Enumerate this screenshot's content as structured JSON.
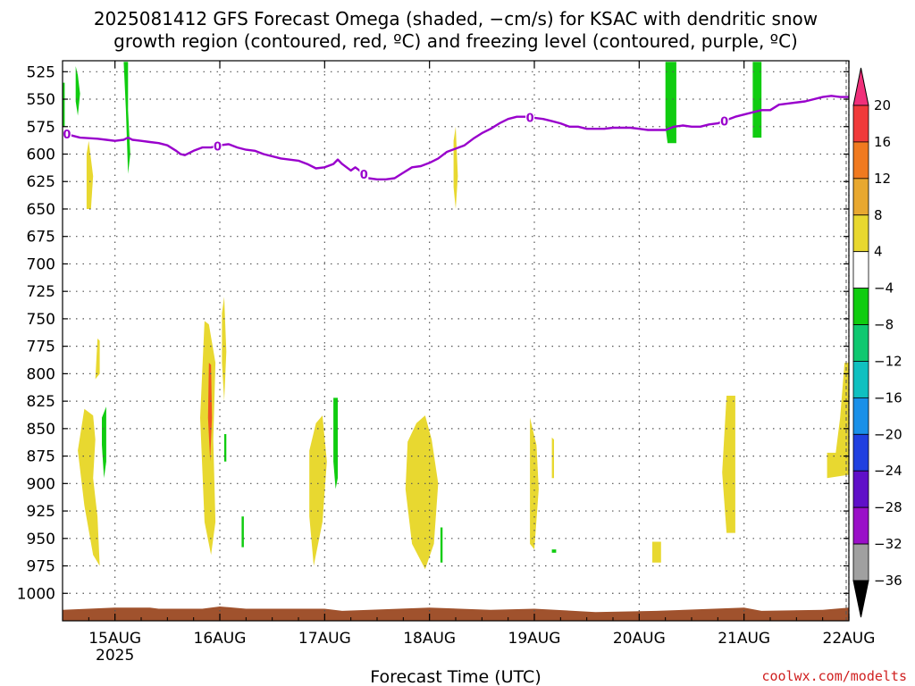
{
  "chart_data": {
    "type": "heatmap",
    "title_lines": [
      "2025081412 GFS Forecast Omega (shaded, −cm/s) for KSAC with dendritic snow",
      "growth region (contoured, red, ºC) and freezing level (contoured, purple, ºC)"
    ],
    "xlabel": "Forecast Time (UTC)",
    "credit": "coolwx.com/modelts",
    "x_range_hours": [
      -12,
      168
    ],
    "x_ticks": [
      {
        "hour": 0,
        "label": "15AUG",
        "sublabel": "2025"
      },
      {
        "hour": 24,
        "label": "16AUG",
        "sublabel": ""
      },
      {
        "hour": 48,
        "label": "17AUG",
        "sublabel": ""
      },
      {
        "hour": 72,
        "label": "18AUG",
        "sublabel": ""
      },
      {
        "hour": 96,
        "label": "19AUG",
        "sublabel": ""
      },
      {
        "hour": 120,
        "label": "20AUG",
        "sublabel": ""
      },
      {
        "hour": 144,
        "label": "21AUG",
        "sublabel": ""
      },
      {
        "hour": 168,
        "label": "22AUG",
        "sublabel": ""
      }
    ],
    "y_range_hpa": [
      1025,
      515
    ],
    "y_ticks": [
      "525",
      "550",
      "575",
      "600",
      "625",
      "650",
      "675",
      "700",
      "725",
      "750",
      "775",
      "800",
      "825",
      "850",
      "875",
      "900",
      "925",
      "950",
      "975",
      "1000"
    ],
    "colorbar": {
      "labels": [
        "20",
        "16",
        "12",
        "8",
        "4",
        "−4",
        "−8",
        "−12",
        "−16",
        "−20",
        "−24",
        "−28",
        "−32",
        "−36"
      ],
      "colors": [
        "#f0307a",
        "#f03a3a",
        "#f07a20",
        "#e8a830",
        "#e8d830",
        "#ffffff",
        "#10cc10",
        "#10c870",
        "#10c0c0",
        "#1a90e8",
        "#2040e0",
        "#6010c8",
        "#9a10c8",
        "#a0a0a0"
      ]
    },
    "freezing_level": {
      "color": "#9900cc",
      "label": "0",
      "label_hours": [
        -11,
        23.5,
        57,
        95,
        139.5
      ],
      "points": [
        [
          -12,
          580
        ],
        [
          -10,
          583
        ],
        [
          -8,
          585
        ],
        [
          -4,
          586
        ],
        [
          -2,
          587
        ],
        [
          0,
          588
        ],
        [
          2,
          587
        ],
        [
          3,
          585
        ],
        [
          4,
          587
        ],
        [
          6,
          588
        ],
        [
          8,
          589
        ],
        [
          10,
          590
        ],
        [
          12,
          592
        ],
        [
          14,
          597
        ],
        [
          15,
          600
        ],
        [
          16,
          601
        ],
        [
          18,
          597
        ],
        [
          20,
          594
        ],
        [
          22,
          594
        ],
        [
          24,
          592
        ],
        [
          26,
          591
        ],
        [
          28,
          594
        ],
        [
          30,
          596
        ],
        [
          32,
          597
        ],
        [
          34,
          600
        ],
        [
          38,
          604
        ],
        [
          42,
          606
        ],
        [
          44,
          609
        ],
        [
          46,
          613
        ],
        [
          48,
          612
        ],
        [
          50,
          609
        ],
        [
          51,
          605
        ],
        [
          52,
          609
        ],
        [
          54,
          615
        ],
        [
          55,
          612
        ],
        [
          56,
          615
        ],
        [
          58,
          622
        ],
        [
          60,
          623
        ],
        [
          62,
          623
        ],
        [
          64,
          622
        ],
        [
          66,
          617
        ],
        [
          68,
          612
        ],
        [
          70,
          611
        ],
        [
          72,
          608
        ],
        [
          74,
          604
        ],
        [
          76,
          598
        ],
        [
          78,
          595
        ],
        [
          80,
          592
        ],
        [
          82,
          586
        ],
        [
          84,
          581
        ],
        [
          86,
          577
        ],
        [
          88,
          572
        ],
        [
          90,
          568
        ],
        [
          92,
          566
        ],
        [
          94,
          566
        ],
        [
          96,
          567
        ],
        [
          98,
          568
        ],
        [
          100,
          570
        ],
        [
          102,
          572
        ],
        [
          104,
          575
        ],
        [
          106,
          575
        ],
        [
          108,
          577
        ],
        [
          110,
          577
        ],
        [
          112,
          577
        ],
        [
          114,
          576
        ],
        [
          116,
          576
        ],
        [
          118,
          576
        ],
        [
          120,
          577
        ],
        [
          122,
          578
        ],
        [
          126,
          578
        ],
        [
          128,
          575
        ],
        [
          130,
          574
        ],
        [
          132,
          575
        ],
        [
          134,
          575
        ],
        [
          136,
          573
        ],
        [
          138,
          572
        ],
        [
          140,
          569
        ],
        [
          142,
          566
        ],
        [
          144,
          564
        ],
        [
          148,
          560
        ],
        [
          150,
          560
        ],
        [
          152,
          555
        ],
        [
          154,
          554
        ],
        [
          158,
          552
        ],
        [
          162,
          548
        ],
        [
          164,
          547
        ],
        [
          166,
          548
        ],
        [
          168,
          548
        ]
      ]
    },
    "positive_omega_regions": [
      {
        "color": "#e8d830",
        "points": [
          [
            -7,
            832
          ],
          [
            -5,
            838
          ],
          [
            -4.5,
            860
          ],
          [
            -5,
            895
          ],
          [
            -4,
            930
          ],
          [
            -3.5,
            975
          ],
          [
            -5,
            965
          ],
          [
            -7,
            920
          ],
          [
            -8.5,
            870
          ]
        ]
      },
      {
        "color": "#e8d830",
        "points": [
          [
            -6.5,
            600
          ],
          [
            -6,
            588
          ],
          [
            -5,
            620
          ],
          [
            -5.5,
            650
          ],
          [
            -6.5,
            650
          ]
        ]
      },
      {
        "color": "#e8d830",
        "points": [
          [
            -4,
            768
          ],
          [
            -3.5,
            770
          ],
          [
            -3.5,
            800
          ],
          [
            -4.5,
            805
          ]
        ]
      },
      {
        "color": "#e8d830",
        "points": [
          [
            20.5,
            752
          ],
          [
            21.5,
            755
          ],
          [
            23,
            790
          ],
          [
            22.5,
            860
          ],
          [
            23,
            935
          ],
          [
            22,
            965
          ],
          [
            20.5,
            935
          ],
          [
            19.5,
            840
          ]
        ]
      },
      {
        "color": "#e8d830",
        "points": [
          [
            24.5,
            745
          ],
          [
            25,
            730
          ],
          [
            25.5,
            780
          ],
          [
            25,
            825
          ],
          [
            24.5,
            790
          ]
        ]
      },
      {
        "color": "#e8d830",
        "points": [
          [
            46,
            845
          ],
          [
            47.5,
            838
          ],
          [
            48.5,
            880
          ],
          [
            47.5,
            935
          ],
          [
            45.5,
            975
          ],
          [
            44.5,
            930
          ],
          [
            44.5,
            870
          ]
        ]
      },
      {
        "color": "#e8d830",
        "points": [
          [
            69,
            845
          ],
          [
            71,
            838
          ],
          [
            72.5,
            860
          ],
          [
            74,
            900
          ],
          [
            73,
            955
          ],
          [
            71,
            978
          ],
          [
            68,
            955
          ],
          [
            66.5,
            905
          ],
          [
            67,
            862
          ]
        ]
      },
      {
        "color": "#e8d830",
        "points": [
          [
            77.5,
            588
          ],
          [
            78,
            575
          ],
          [
            78.5,
            620
          ],
          [
            78,
            650
          ],
          [
            77.5,
            630
          ]
        ]
      },
      {
        "color": "#e8d830",
        "points": [
          [
            95,
            840
          ],
          [
            96.5,
            865
          ],
          [
            97,
            905
          ],
          [
            96,
            960
          ],
          [
            95,
            955
          ],
          [
            95,
            880
          ]
        ]
      },
      {
        "color": "#e8d830",
        "points": [
          [
            100,
            858
          ],
          [
            100.5,
            860
          ],
          [
            100.5,
            895
          ],
          [
            100,
            895
          ]
        ]
      },
      {
        "color": "#e8d830",
        "points": [
          [
            123,
            953
          ],
          [
            125,
            953
          ],
          [
            125,
            972
          ],
          [
            123,
            972
          ]
        ]
      },
      {
        "color": "#e8d830",
        "points": [
          [
            140,
            820
          ],
          [
            142,
            820
          ],
          [
            142,
            945
          ],
          [
            140,
            945
          ],
          [
            139,
            890
          ]
        ]
      },
      {
        "color": "#e8d830",
        "points": [
          [
            163,
            872
          ],
          [
            165,
            872
          ],
          [
            166,
            840
          ],
          [
            167,
            790
          ],
          [
            168,
            790
          ],
          [
            168,
            892
          ],
          [
            163,
            895
          ]
        ]
      }
    ],
    "negative_omega_regions": [
      {
        "color": "#10cc10",
        "points": [
          [
            -9,
            520
          ],
          [
            -8.5,
            528
          ],
          [
            -8,
            545
          ],
          [
            -8.5,
            565
          ],
          [
            -9,
            552
          ]
        ]
      },
      {
        "color": "#10cc10",
        "points": [
          [
            -12,
            535
          ],
          [
            -11.5,
            535
          ],
          [
            -11.5,
            575
          ],
          [
            -12,
            575
          ]
        ]
      },
      {
        "color": "#10cc10",
        "points": [
          [
            2,
            516
          ],
          [
            3,
            516
          ],
          [
            3,
            560
          ],
          [
            3.5,
            600
          ],
          [
            3,
            618
          ],
          [
            2.5,
            560
          ]
        ]
      },
      {
        "color": "#10cc10",
        "points": [
          [
            -3,
            840
          ],
          [
            -2,
            830
          ],
          [
            -2,
            880
          ],
          [
            -2.5,
            895
          ],
          [
            -3,
            865
          ]
        ]
      },
      {
        "color": "#10cc10",
        "points": [
          [
            25,
            855
          ],
          [
            25.5,
            855
          ],
          [
            25.5,
            880
          ],
          [
            25,
            880
          ]
        ]
      },
      {
        "color": "#10cc10",
        "points": [
          [
            29,
            930
          ],
          [
            29.5,
            930
          ],
          [
            29.5,
            958
          ],
          [
            29,
            958
          ]
        ]
      },
      {
        "color": "#10cc10",
        "points": [
          [
            50,
            822
          ],
          [
            51,
            822
          ],
          [
            51,
            895
          ],
          [
            50.5,
            905
          ],
          [
            50,
            880
          ]
        ]
      },
      {
        "color": "#10cc10",
        "points": [
          [
            74.5,
            940
          ],
          [
            75,
            940
          ],
          [
            75,
            972
          ],
          [
            74.5,
            972
          ]
        ]
      },
      {
        "color": "#10cc10",
        "points": [
          [
            100,
            960
          ],
          [
            101,
            960
          ],
          [
            101,
            963
          ],
          [
            100,
            963
          ]
        ]
      },
      {
        "color": "#10cc10",
        "points": [
          [
            126,
            516
          ],
          [
            128.5,
            516
          ],
          [
            128.5,
            590
          ],
          [
            126.5,
            590
          ],
          [
            126,
            575
          ]
        ]
      },
      {
        "color": "#10cc10",
        "points": [
          [
            146,
            516
          ],
          [
            148,
            516
          ],
          [
            148,
            585
          ],
          [
            146,
            585
          ]
        ]
      }
    ],
    "red_contour_region": {
      "color": "#ee5522",
      "points": [
        [
          21.5,
          790
        ],
        [
          22,
          792
        ],
        [
          22.2,
          840
        ],
        [
          21.8,
          880
        ],
        [
          21.3,
          840
        ]
      ]
    },
    "terrain": {
      "color": "#a0522d",
      "points": [
        [
          -12,
          1015
        ],
        [
          0,
          1013
        ],
        [
          8,
          1013
        ],
        [
          10,
          1014
        ],
        [
          20,
          1014
        ],
        [
          24,
          1012
        ],
        [
          30,
          1014
        ],
        [
          48,
          1014
        ],
        [
          52,
          1016
        ],
        [
          72,
          1013
        ],
        [
          86,
          1015
        ],
        [
          96,
          1014
        ],
        [
          110,
          1017
        ],
        [
          124,
          1016
        ],
        [
          144,
          1013
        ],
        [
          148,
          1016
        ],
        [
          162,
          1015
        ],
        [
          168,
          1013
        ]
      ]
    }
  }
}
